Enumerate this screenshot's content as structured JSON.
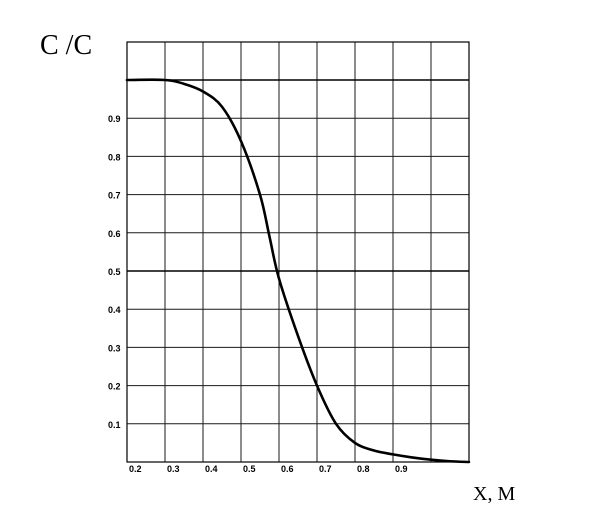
{
  "chart_data": {
    "type": "line",
    "ylabel": "C /C",
    "xlabel": "X, M",
    "xlim": [
      0.2,
      1.1
    ],
    "ylim": [
      0,
      1.0
    ],
    "x_ticks": [
      "0.2",
      "0.3",
      "0.4",
      "0.5",
      "0.6",
      "0.7",
      "0.8",
      "0.9"
    ],
    "y_ticks": [
      "0.1",
      "0.2",
      "0.3",
      "0.4",
      "0.5",
      "0.6",
      "0.7",
      "0.8",
      "0.9"
    ],
    "grid": true,
    "series": [
      {
        "x": [
          0.2,
          0.3,
          0.35,
          0.4,
          0.45,
          0.5,
          0.55,
          0.575,
          0.6,
          0.65,
          0.7,
          0.75,
          0.8,
          0.85,
          0.9,
          0.95,
          1.0,
          1.05,
          1.1
        ],
        "y": [
          1.0,
          1.0,
          0.99,
          0.97,
          0.93,
          0.84,
          0.7,
          0.59,
          0.48,
          0.33,
          0.2,
          0.1,
          0.05,
          0.03,
          0.02,
          0.012,
          0.006,
          0.002,
          0.0
        ]
      }
    ]
  }
}
